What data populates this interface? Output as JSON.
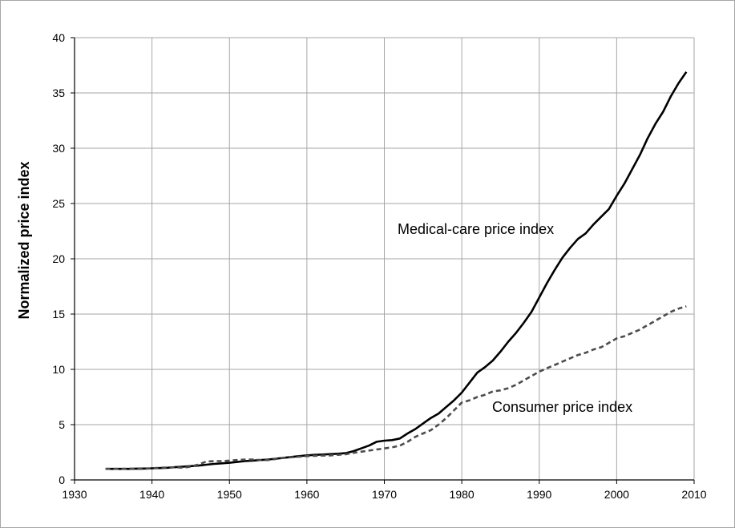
{
  "chart_data": {
    "type": "line",
    "title": "",
    "xlabel": "",
    "ylabel": "Normalized price index",
    "xlim": [
      1930,
      2010
    ],
    "ylim": [
      0,
      40
    ],
    "xticks": [
      1930,
      1940,
      1950,
      1960,
      1970,
      1980,
      1990,
      2000,
      2010
    ],
    "yticks": [
      0,
      5,
      10,
      15,
      20,
      25,
      30,
      35,
      40
    ],
    "grid": true,
    "legend": "none",
    "series": [
      {
        "name": "Medical-care price index",
        "style": "solid",
        "color": "#000000",
        "x": [
          1934,
          1935,
          1936,
          1937,
          1938,
          1939,
          1940,
          1941,
          1942,
          1943,
          1944,
          1945,
          1946,
          1947,
          1948,
          1949,
          1950,
          1951,
          1952,
          1953,
          1954,
          1955,
          1956,
          1957,
          1958,
          1959,
          1960,
          1961,
          1962,
          1963,
          1964,
          1965,
          1966,
          1967,
          1968,
          1969,
          1970,
          1971,
          1972,
          1973,
          1974,
          1975,
          1976,
          1977,
          1978,
          1979,
          1980,
          1981,
          1982,
          1983,
          1984,
          1985,
          1986,
          1987,
          1988,
          1989,
          1990,
          1991,
          1992,
          1993,
          1994,
          1995,
          1996,
          1997,
          1998,
          1999,
          2000,
          2001,
          2002,
          2003,
          2004,
          2005,
          2006,
          2007,
          2008,
          2009
        ],
        "values": [
          1.0,
          1.0,
          1.0,
          1.0,
          1.02,
          1.03,
          1.05,
          1.07,
          1.1,
          1.15,
          1.2,
          1.25,
          1.3,
          1.38,
          1.45,
          1.5,
          1.55,
          1.62,
          1.7,
          1.75,
          1.8,
          1.85,
          1.92,
          2.0,
          2.08,
          2.15,
          2.22,
          2.27,
          2.3,
          2.33,
          2.37,
          2.42,
          2.6,
          2.85,
          3.1,
          3.45,
          3.55,
          3.6,
          3.75,
          4.2,
          4.6,
          5.1,
          5.6,
          6.0,
          6.6,
          7.2,
          7.9,
          8.8,
          9.7,
          10.2,
          10.8,
          11.6,
          12.5,
          13.3,
          14.2,
          15.2,
          16.5,
          17.8,
          19.0,
          20.1,
          21.0,
          21.8,
          22.3,
          23.1,
          23.8,
          24.5,
          25.7,
          26.8,
          28.1,
          29.4,
          30.9,
          32.2,
          33.3,
          34.7,
          35.9,
          36.9
        ]
      },
      {
        "name": "Consumer price index",
        "style": "dashed",
        "color": "#4d4d4d",
        "x": [
          1934,
          1935,
          1936,
          1937,
          1938,
          1939,
          1940,
          1941,
          1942,
          1943,
          1944,
          1945,
          1946,
          1947,
          1948,
          1949,
          1950,
          1951,
          1952,
          1953,
          1954,
          1955,
          1956,
          1957,
          1958,
          1959,
          1960,
          1961,
          1962,
          1963,
          1964,
          1965,
          1966,
          1967,
          1968,
          1969,
          1970,
          1971,
          1972,
          1973,
          1974,
          1975,
          1976,
          1977,
          1978,
          1979,
          1980,
          1981,
          1982,
          1983,
          1984,
          1985,
          1986,
          1987,
          1988,
          1989,
          1990,
          1991,
          1992,
          1993,
          1994,
          1995,
          1996,
          1997,
          1998,
          1999,
          2000,
          2001,
          2002,
          2003,
          2004,
          2005,
          2006,
          2007,
          2008,
          2009
        ],
        "values": [
          1.0,
          1.0,
          1.0,
          1.02,
          1.0,
          1.0,
          1.05,
          1.1,
          1.12,
          1.15,
          1.1,
          1.2,
          1.4,
          1.65,
          1.7,
          1.7,
          1.75,
          1.8,
          1.85,
          1.85,
          1.8,
          1.8,
          1.9,
          2.0,
          2.05,
          2.1,
          2.15,
          2.18,
          2.2,
          2.22,
          2.27,
          2.32,
          2.45,
          2.55,
          2.65,
          2.75,
          2.85,
          2.95,
          3.1,
          3.45,
          3.9,
          4.2,
          4.5,
          5.0,
          5.6,
          6.3,
          7.0,
          7.2,
          7.5,
          7.7,
          8.0,
          8.1,
          8.3,
          8.6,
          9.0,
          9.4,
          9.8,
          10.1,
          10.4,
          10.7,
          11.0,
          11.3,
          11.5,
          11.8,
          12.0,
          12.4,
          12.8,
          13.0,
          13.3,
          13.6,
          14.0,
          14.4,
          14.8,
          15.2,
          15.5,
          15.7
        ]
      }
    ],
    "annotations": [
      {
        "text": "Medical-care price index",
        "target": "series-0"
      },
      {
        "text": "Consumer price index",
        "target": "series-1"
      }
    ]
  }
}
